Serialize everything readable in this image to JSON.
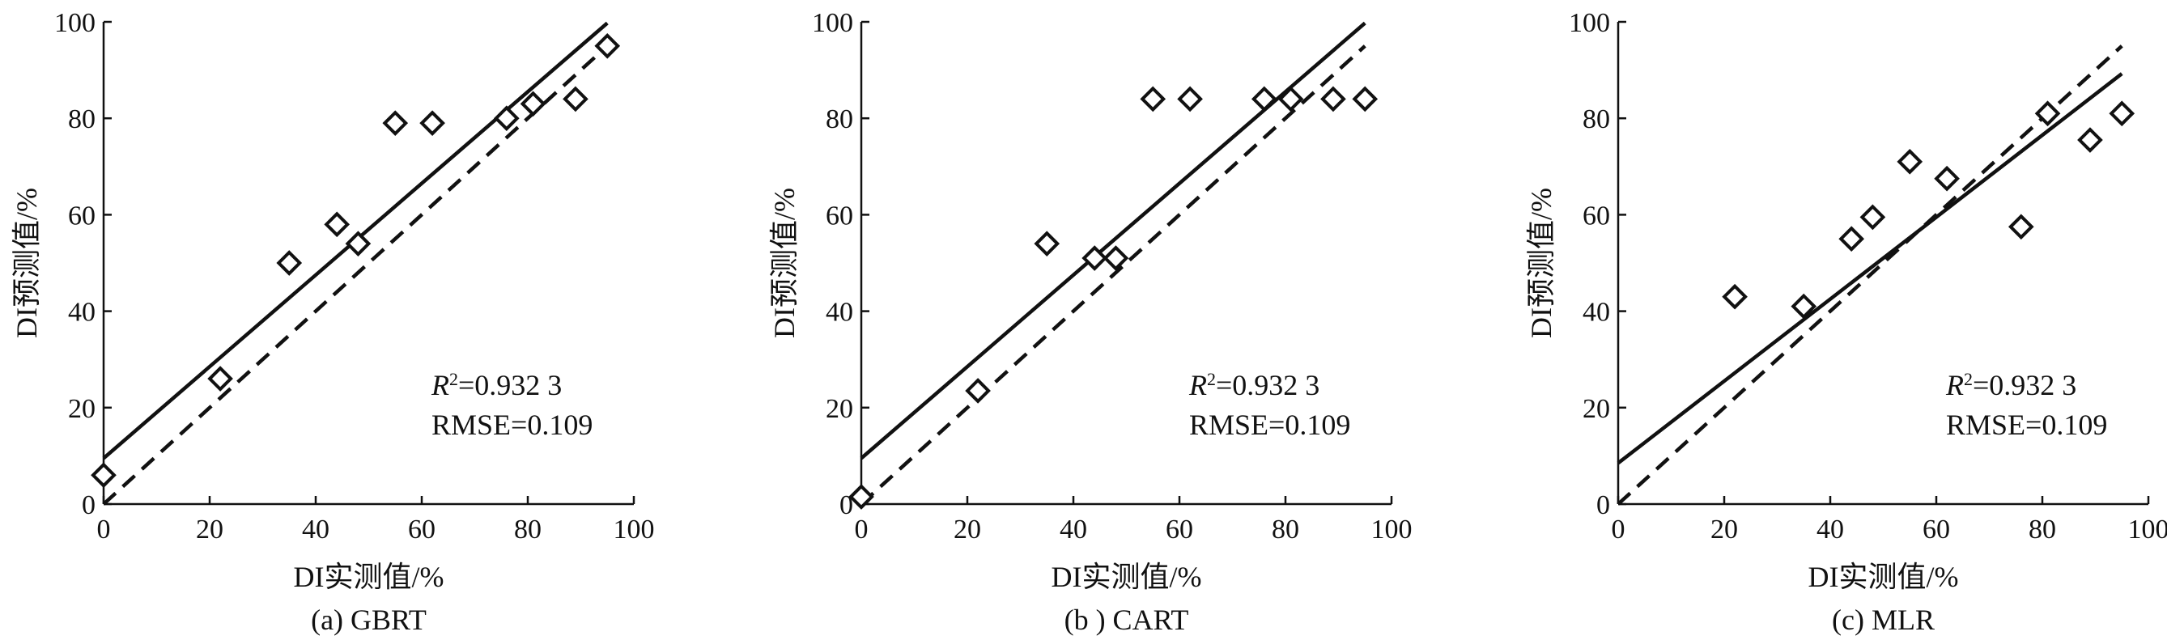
{
  "chart_data": [
    {
      "type": "scatter",
      "caption": "(a) GBRT",
      "xlabel": "DI实测值/%",
      "ylabel": "DI预测值/%",
      "xlim": [
        0,
        100
      ],
      "ylim": [
        0,
        100
      ],
      "xticks": [
        "0",
        "20",
        "40",
        "60",
        "80",
        "100"
      ],
      "yticks": [
        "0",
        "20",
        "40",
        "60",
        "80",
        "100"
      ],
      "stats": {
        "r2_symbol": "R",
        "r2_exponent": "2",
        "r2_value": "=0.932 3",
        "rmse": "RMSE=0.109"
      },
      "points": [
        [
          0,
          6
        ],
        [
          22,
          26
        ],
        [
          35,
          50
        ],
        [
          44,
          58
        ],
        [
          48,
          54
        ],
        [
          55,
          79
        ],
        [
          62,
          79
        ],
        [
          76,
          80
        ],
        [
          81,
          83
        ],
        [
          89,
          84
        ],
        [
          95,
          95
        ]
      ],
      "fit_line": {
        "intercept": 9.5,
        "slope": 0.95
      },
      "reference_line": {
        "intercept": 0,
        "slope": 1,
        "style": "dashed"
      }
    },
    {
      "type": "scatter",
      "caption": "(b ) CART",
      "xlabel": "DI实测值/%",
      "ylabel": "DI预测值/%",
      "xlim": [
        0,
        100
      ],
      "ylim": [
        0,
        100
      ],
      "xticks": [
        "0",
        "20",
        "40",
        "60",
        "80",
        "100"
      ],
      "yticks": [
        "0",
        "20",
        "40",
        "60",
        "80",
        "100"
      ],
      "stats": {
        "r2_symbol": "R",
        "r2_exponent": "2",
        "r2_value": "=0.932 3",
        "rmse": "RMSE=0.109"
      },
      "points": [
        [
          0,
          1.5
        ],
        [
          22,
          23.5
        ],
        [
          35,
          54
        ],
        [
          44,
          51
        ],
        [
          48,
          51
        ],
        [
          55,
          84
        ],
        [
          62,
          84
        ],
        [
          76,
          84
        ],
        [
          81,
          84
        ],
        [
          89,
          84
        ],
        [
          95,
          84
        ]
      ],
      "fit_line": {
        "intercept": 9.5,
        "slope": 0.95
      },
      "reference_line": {
        "intercept": 0,
        "slope": 1,
        "style": "dashed"
      }
    },
    {
      "type": "scatter",
      "caption": "(c) MLR",
      "xlabel": "DI实测值/%",
      "ylabel": "DI预测值/%",
      "xlim": [
        0,
        100
      ],
      "ylim": [
        0,
        100
      ],
      "xticks": [
        "0",
        "20",
        "40",
        "60",
        "80",
        "100"
      ],
      "yticks": [
        "0",
        "20",
        "40",
        "60",
        "80",
        "100"
      ],
      "stats": {
        "r2_symbol": "R",
        "r2_exponent": "2",
        "r2_value": "=0.932 3",
        "rmse": "RMSE=0.109"
      },
      "points": [
        [
          22,
          43
        ],
        [
          35,
          41
        ],
        [
          44,
          55
        ],
        [
          48,
          59.5
        ],
        [
          55,
          71
        ],
        [
          62,
          67.5
        ],
        [
          76,
          57.5
        ],
        [
          81,
          81
        ],
        [
          89,
          75.5
        ],
        [
          95,
          81
        ]
      ],
      "fit_line": {
        "intercept": 8.5,
        "slope": 0.85
      },
      "reference_line": {
        "intercept": 0,
        "slope": 1,
        "style": "dashed"
      }
    }
  ]
}
